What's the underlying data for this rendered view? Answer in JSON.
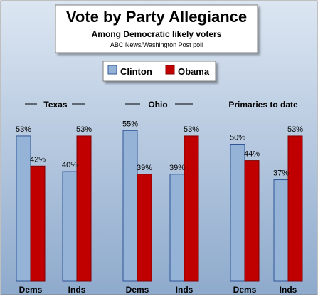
{
  "chart_data": {
    "type": "bar",
    "title": "Vote by Party Allegiance",
    "subtitle": "Among Democratic likely voters",
    "source": "ABC News/Washington Post poll",
    "value_suffix": "%",
    "ylim": [
      0,
      60
    ],
    "grid": false,
    "legend": {
      "placement": "top-center",
      "entries": [
        {
          "name": "Clinton",
          "color": "#95B3D7"
        },
        {
          "name": "Obama",
          "color": "#C00000"
        }
      ]
    },
    "groups": [
      {
        "label": "Texas",
        "categories": [
          "Dems",
          "Inds"
        ],
        "series": [
          {
            "name": "Clinton",
            "values": [
              53,
              40
            ]
          },
          {
            "name": "Obama",
            "values": [
              42,
              53
            ]
          }
        ]
      },
      {
        "label": "Ohio",
        "categories": [
          "Dems",
          "Inds"
        ],
        "series": [
          {
            "name": "Clinton",
            "values": [
              55,
              39
            ]
          },
          {
            "name": "Obama",
            "values": [
              39,
              53
            ]
          }
        ]
      },
      {
        "label": "Primaries to date",
        "categories": [
          "Dems",
          "Inds"
        ],
        "series": [
          {
            "name": "Clinton",
            "values": [
              50,
              37
            ]
          },
          {
            "name": "Obama",
            "values": [
              44,
              53
            ]
          }
        ]
      }
    ]
  },
  "colors": {
    "background_top": "#DCE6F2",
    "background_bottom": "#8EAACC",
    "clinton_stroke": "#2F5597",
    "obama_stroke": "#7F0000",
    "text": "#000000"
  }
}
